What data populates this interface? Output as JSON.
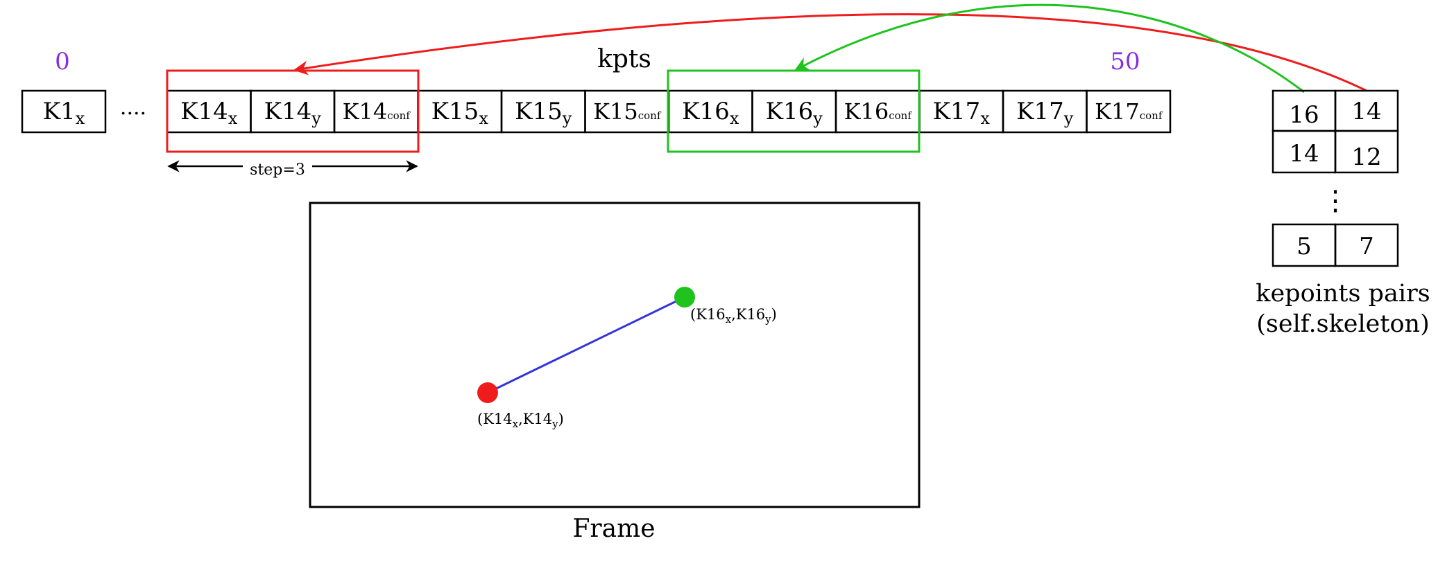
{
  "labels": {
    "index_start": "0",
    "index_end": "50",
    "array_title": "kpts",
    "ellipsis": "....",
    "step": "step=3",
    "frame": "Frame",
    "pairs_line1": "kepoints pairs",
    "pairs_line2": "(self.skeleton)",
    "vertical_dots": "⋮"
  },
  "cells": [
    {
      "base": "K1",
      "sub": "x"
    },
    {
      "base": "K14",
      "sub": "x"
    },
    {
      "base": "K14",
      "sub": "y"
    },
    {
      "base": "K14",
      "sub": "conf"
    },
    {
      "base": "K15",
      "sub": "x"
    },
    {
      "base": "K15",
      "sub": "y"
    },
    {
      "base": "K15",
      "sub": "conf"
    },
    {
      "base": "K16",
      "sub": "x"
    },
    {
      "base": "K16",
      "sub": "y"
    },
    {
      "base": "K16",
      "sub": "conf"
    },
    {
      "base": "K17",
      "sub": "x"
    },
    {
      "base": "K17",
      "sub": "y"
    },
    {
      "base": "K17",
      "sub": "conf"
    }
  ],
  "pairs": [
    [
      "16",
      "14"
    ],
    [
      "14",
      "12"
    ],
    [
      "5",
      "7"
    ]
  ],
  "points": {
    "p14": {
      "open": "(K14",
      "sx": "x",
      "comma": ",K14",
      "sy": "y",
      "close": ")"
    },
    "p16": {
      "open": "(K16",
      "sx": "x",
      "comma": ",K16",
      "sy": "y",
      "close": ")"
    }
  },
  "colors": {
    "index": "#8a2be2",
    "red": "#ee1c1c",
    "green": "#1ec31e",
    "blue": "#3333dd",
    "black": "#000000"
  }
}
